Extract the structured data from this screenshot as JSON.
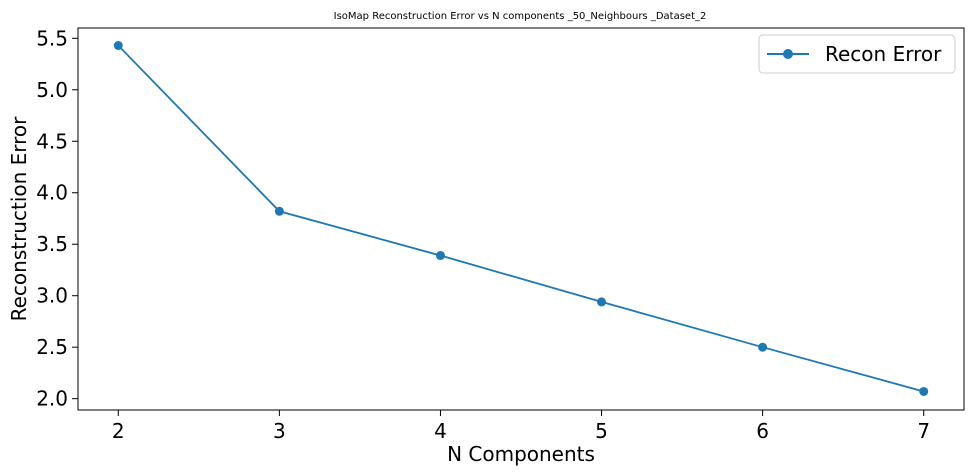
{
  "chart_data": {
    "type": "line",
    "title": "IsoMap Reconstruction Error vs N components _50_Neighbours _Dataset_2",
    "xlabel": "N Components",
    "ylabel": "Reconstruction Error",
    "x": [
      2,
      3,
      4,
      5,
      6,
      7
    ],
    "series": [
      {
        "name": "Recon Error",
        "values": [
          5.43,
          3.82,
          3.39,
          2.94,
          2.5,
          2.07
        ],
        "color": "#1f77b4"
      }
    ],
    "xlim": [
      1.75,
      7.25
    ],
    "ylim": [
      1.89,
      5.6
    ],
    "xticks": [
      "2",
      "3",
      "4",
      "5",
      "6",
      "7"
    ],
    "yticks": [
      "2.0",
      "2.5",
      "3.0",
      "3.5",
      "4.0",
      "4.5",
      "5.0",
      "5.5"
    ],
    "grid": false,
    "legend": "top-right",
    "marker": "circle"
  }
}
